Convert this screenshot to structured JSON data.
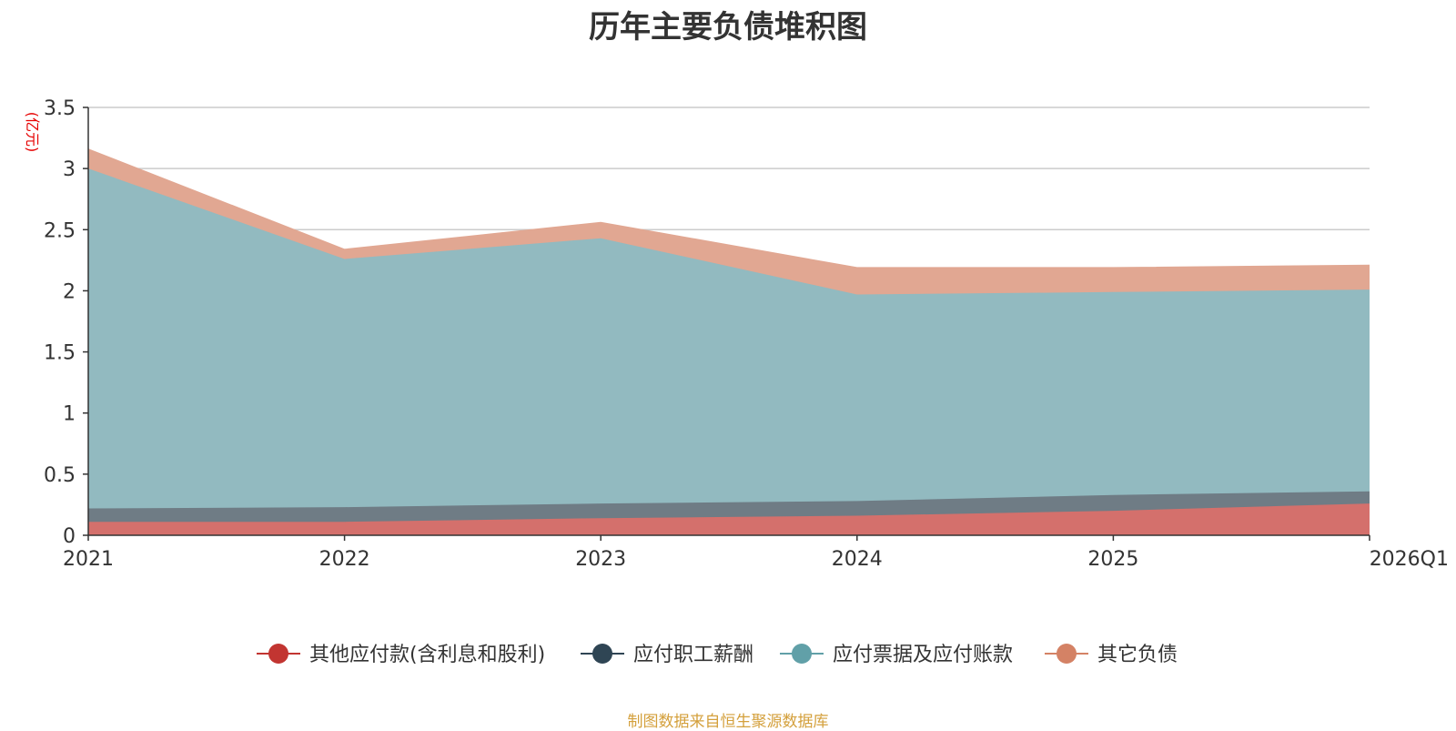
{
  "chart_data": {
    "type": "area",
    "stacked": true,
    "title": "历年主要负债堆积图",
    "ylabel": "(亿元)",
    "xlabel": "",
    "categories": [
      "2021",
      "2022",
      "2023",
      "2024",
      "2025",
      "2026Q1"
    ],
    "ylim": [
      0,
      3.5
    ],
    "yticks": [
      "0",
      "0.5",
      "1",
      "1.5",
      "2",
      "2.5",
      "3",
      "3.5"
    ],
    "grid": true,
    "legend_position": "bottom",
    "series": [
      {
        "name": "其他应付款(含利息和股利)",
        "color": "#c23531",
        "fill": "#d4706c",
        "values": [
          0.11,
          0.11,
          0.14,
          0.16,
          0.2,
          0.26
        ]
      },
      {
        "name": "应付职工薪酬",
        "color": "#2f4554",
        "fill": "#6f7c85",
        "values": [
          0.11,
          0.12,
          0.12,
          0.12,
          0.13,
          0.1
        ]
      },
      {
        "name": "应付票据及应付账款",
        "color": "#61a0a8",
        "fill": "#92bac0",
        "values": [
          2.78,
          2.03,
          2.17,
          1.69,
          1.66,
          1.65
        ]
      },
      {
        "name": "其它负债",
        "color": "#d48265",
        "fill": "#e1a792",
        "values": [
          0.16,
          0.08,
          0.13,
          0.22,
          0.2,
          0.2
        ]
      }
    ]
  },
  "footer": {
    "source": "制图数据来自恒生聚源数据库"
  }
}
